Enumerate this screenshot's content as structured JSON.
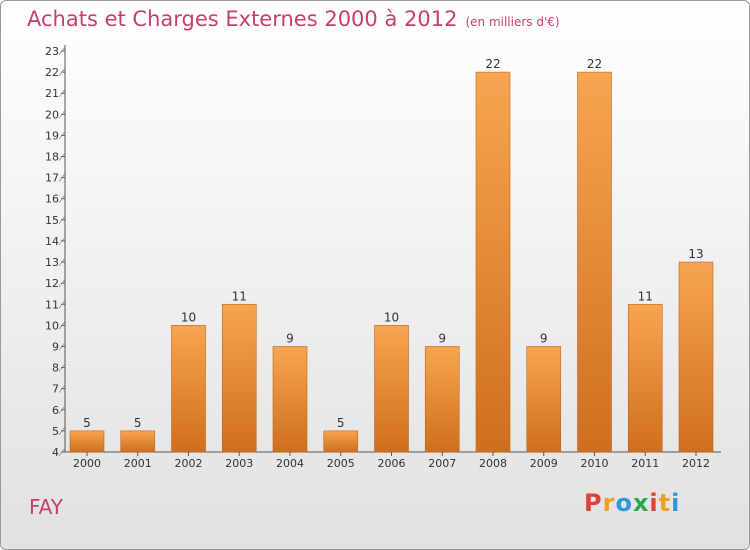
{
  "header": {
    "title": "Achats et Charges Externes 2000 à 2012",
    "subtitle": "(en milliers d'€)"
  },
  "footer": {
    "commune": "FAY",
    "brand": "Proxiti"
  },
  "colors": {
    "bar_top": "#f7a552",
    "bar_bottom": "#cf6f1d",
    "title": "#c8406a"
  },
  "chart_data": {
    "type": "bar",
    "title": "Achats et Charges Externes 2000 à 2012",
    "subtitle": "(en milliers d'€)",
    "xlabel": "",
    "ylabel": "",
    "categories": [
      "2000",
      "2001",
      "2002",
      "2003",
      "2004",
      "2005",
      "2006",
      "2007",
      "2008",
      "2009",
      "2010",
      "2011",
      "2012"
    ],
    "values": [
      5,
      5,
      10,
      11,
      9,
      5,
      10,
      9,
      22,
      9,
      22,
      11,
      13
    ],
    "ylim": [
      4,
      23
    ],
    "yticks": [
      4,
      5,
      6,
      7,
      8,
      9,
      10,
      11,
      12,
      13,
      14,
      15,
      16,
      17,
      18,
      19,
      20,
      21,
      22,
      23
    ],
    "grid": false,
    "data_labels": true
  }
}
